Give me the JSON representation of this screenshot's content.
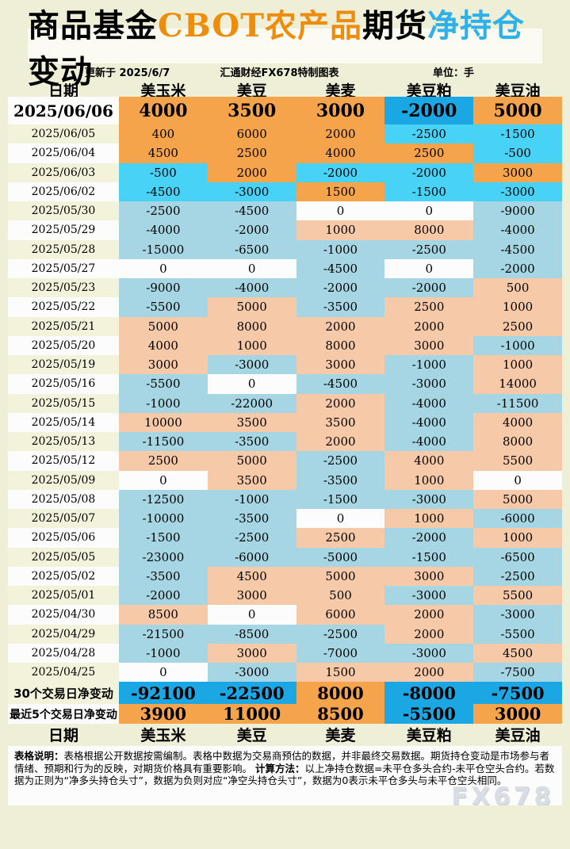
{
  "title_segments": [
    {
      "text": "商品基金",
      "color": "#000000"
    },
    {
      "text": "CBOT农产品",
      "color": "#EE8D0B"
    },
    {
      "text": "期货",
      "color": "#000000"
    },
    {
      "text": "净持仓",
      "color": "#2EB1E8"
    },
    {
      "text": "变动",
      "color": "#000000"
    }
  ],
  "meta": {
    "updated": "更新于 2025/6/7",
    "source": "汇通财经FX678特制图表",
    "unit": "单位：手"
  },
  "chart_data": {
    "type": "table",
    "title": "商品基金CBOT农产品期货净持仓变动",
    "date_header": "日期",
    "columns": [
      "美玉米",
      "美豆",
      "美麦",
      "美豆粕",
      "美豆油"
    ],
    "rows": [
      {
        "date": "2025/06/06",
        "values": [
          4000,
          3500,
          3000,
          -2000,
          5000
        ]
      },
      {
        "date": "2025/06/05",
        "values": [
          400,
          6000,
          2000,
          -2500,
          -1500
        ]
      },
      {
        "date": "2025/06/04",
        "values": [
          4500,
          2500,
          4000,
          2500,
          -500
        ]
      },
      {
        "date": "2025/06/03",
        "values": [
          -500,
          2000,
          -2000,
          -2000,
          3000
        ]
      },
      {
        "date": "2025/06/02",
        "values": [
          -4500,
          -3000,
          1500,
          -1500,
          -3000
        ]
      },
      {
        "date": "2025/05/30",
        "values": [
          -2500,
          -4500,
          0,
          0,
          -9000
        ]
      },
      {
        "date": "2025/05/29",
        "values": [
          -4000,
          -2000,
          1000,
          8000,
          -4000
        ]
      },
      {
        "date": "2025/05/28",
        "values": [
          -15000,
          -6500,
          -1000,
          -2500,
          -4500
        ]
      },
      {
        "date": "2025/05/27",
        "values": [
          0,
          0,
          -4500,
          0,
          -2000
        ]
      },
      {
        "date": "2025/05/23",
        "values": [
          -9000,
          -4000,
          -2000,
          -2000,
          500
        ]
      },
      {
        "date": "2025/05/22",
        "values": [
          -5500,
          5000,
          -3500,
          2500,
          1000
        ]
      },
      {
        "date": "2025/05/21",
        "values": [
          5000,
          8000,
          2000,
          2000,
          2500
        ]
      },
      {
        "date": "2025/05/20",
        "values": [
          4000,
          1000,
          8000,
          3000,
          -1000
        ]
      },
      {
        "date": "2025/05/19",
        "values": [
          3000,
          -3000,
          3000,
          -1000,
          1000
        ]
      },
      {
        "date": "2025/05/16",
        "values": [
          -5500,
          0,
          -4500,
          -3000,
          14000
        ]
      },
      {
        "date": "2025/05/15",
        "values": [
          -1000,
          -22000,
          2000,
          -4000,
          -11500
        ]
      },
      {
        "date": "2025/05/14",
        "values": [
          10000,
          3500,
          3500,
          -4000,
          4000
        ]
      },
      {
        "date": "2025/05/13",
        "values": [
          -11500,
          -3500,
          2000,
          -4000,
          8000
        ]
      },
      {
        "date": "2025/05/12",
        "values": [
          2500,
          5000,
          -2500,
          4000,
          5500
        ]
      },
      {
        "date": "2025/05/09",
        "values": [
          0,
          3500,
          -3500,
          1000,
          0
        ]
      },
      {
        "date": "2025/05/08",
        "values": [
          -12500,
          -1000,
          -1500,
          -3000,
          5000
        ]
      },
      {
        "date": "2025/05/07",
        "values": [
          -10000,
          -3500,
          0,
          1000,
          -6000
        ]
      },
      {
        "date": "2025/05/06",
        "values": [
          -1500,
          -2500,
          2500,
          -2000,
          1000
        ]
      },
      {
        "date": "2025/05/05",
        "values": [
          -23000,
          -6000,
          -5000,
          -1500,
          -6500
        ]
      },
      {
        "date": "2025/05/02",
        "values": [
          -3500,
          4500,
          5000,
          3000,
          -2500
        ]
      },
      {
        "date": "2025/05/01",
        "values": [
          -2000,
          3000,
          500,
          -3000,
          5500
        ]
      },
      {
        "date": "2025/04/30",
        "values": [
          8500,
          0,
          6000,
          2000,
          -3000
        ]
      },
      {
        "date": "2025/04/29",
        "values": [
          -21500,
          -8500,
          -2500,
          2000,
          -5500
        ]
      },
      {
        "date": "2025/04/28",
        "values": [
          -1000,
          3000,
          -7000,
          -3000,
          4500
        ]
      },
      {
        "date": "2025/04/25",
        "values": [
          0,
          -3000,
          1500,
          2000,
          -7500
        ]
      }
    ],
    "summary": [
      {
        "label": "30个交易日净变动",
        "values": [
          -92100,
          -22500,
          8000,
          -8000,
          -7500
        ]
      },
      {
        "label": "最近5个交易日净变动",
        "values": [
          3900,
          11000,
          8500,
          -5500,
          3000
        ]
      }
    ]
  },
  "notes": {
    "label1": "表格说明：",
    "text1": "表格根据公开数据按需编制。表格中数据为交易商预估的数据，并非最终交易数据。期货持仓变动是市场参与者情绪、预期和行为的反映，对期货价格具有重要影响。",
    "label2": "计算方法：",
    "text2": "以上净持仓数据=未平仓多头合约-未平仓空头合约。若数据为正则为“净多头持仓头寸”，数据为负则对应“净空头持仓头寸”，数据为0表示未平仓多头与未平仓空头相同。"
  },
  "watermark": "FX678",
  "colors": {
    "page_bg": "#EFEFD8",
    "panel_bg": "#FBFBF3",
    "date_alt_bg": "#F3F3DC",
    "white_cell": "#FCFCFC",
    "pos_bright": "#F5A44C",
    "neg_deep": "#1BA7E3",
    "neg_cyan": "#48D2F5",
    "pos_light": "#F6C9A8",
    "neg_light": "#A6D6E4",
    "watermark_color": "#D9DEE4"
  }
}
